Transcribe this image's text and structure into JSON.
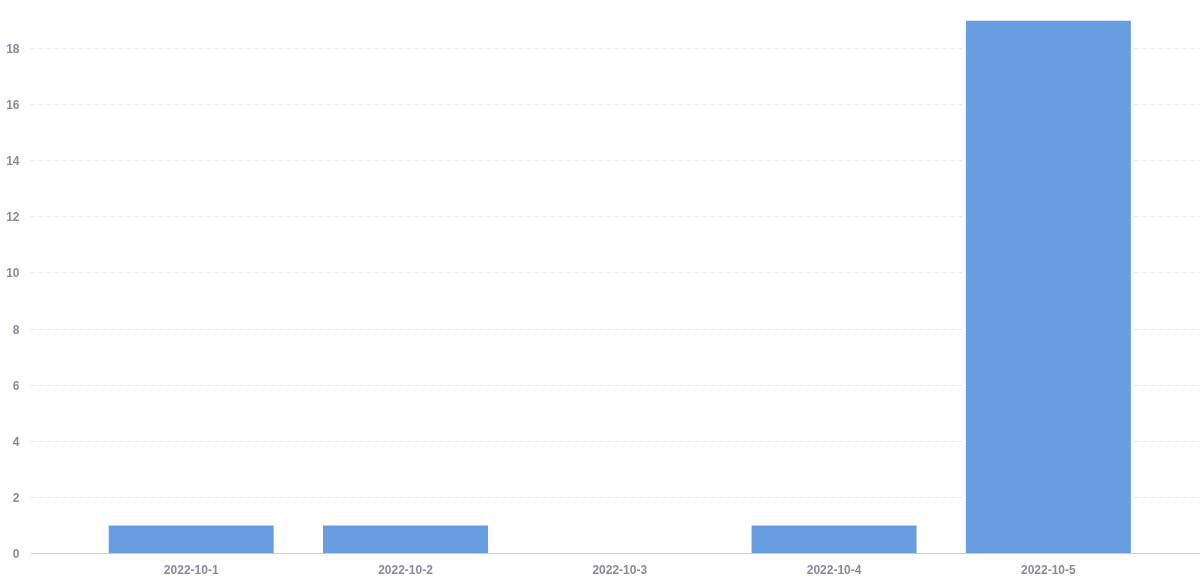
{
  "chart_data": {
    "type": "bar",
    "categories": [
      "2022-10-1",
      "2022-10-2",
      "2022-10-3",
      "2022-10-4",
      "2022-10-5"
    ],
    "values": [
      1,
      1,
      0,
      1,
      19
    ],
    "color": "#689ddf",
    "ylim": [
      0,
      19
    ],
    "yticks": [
      0,
      2,
      4,
      6,
      8,
      10,
      12,
      14,
      16,
      18
    ],
    "grid": "y"
  }
}
